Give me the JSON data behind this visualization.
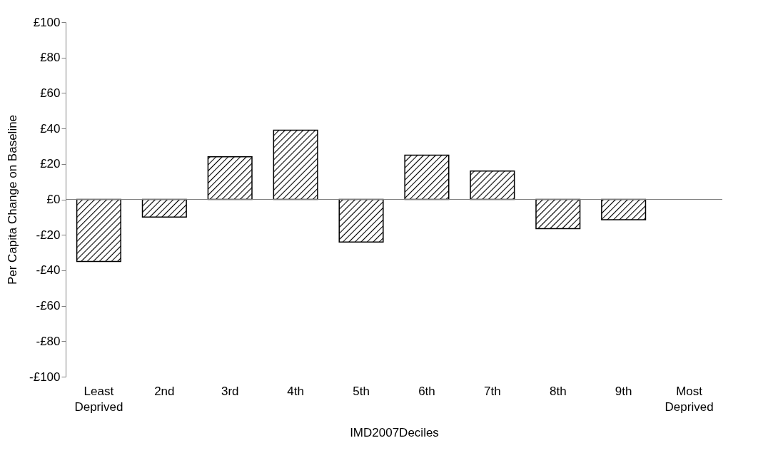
{
  "chart_data": {
    "type": "bar",
    "xlabel": "IMD2007Deciles",
    "ylabel": "Per Capita Change on Baseline",
    "categories": [
      "Least Deprived",
      "2nd",
      "3rd",
      "4th",
      "5th",
      "6th",
      "7th",
      "8th",
      "9th",
      "Most Deprived"
    ],
    "values": [
      -35,
      -10,
      24,
      39,
      -24,
      25,
      16,
      -16.5,
      -11.5,
      null
    ],
    "color": "#000000",
    "ylim": [
      -100,
      100
    ],
    "yticks": [
      {
        "value": -100,
        "label": "-£100"
      },
      {
        "value": -80,
        "label": "-£80"
      },
      {
        "value": -60,
        "label": "-£60"
      },
      {
        "value": -40,
        "label": "-£40"
      },
      {
        "value": -20,
        "label": "-£20"
      },
      {
        "value": 0,
        "label": "£0"
      },
      {
        "value": 20,
        "label": "£20"
      },
      {
        "value": 40,
        "label": "£40"
      },
      {
        "value": 60,
        "label": "£60"
      },
      {
        "value": 80,
        "label": "£80"
      },
      {
        "value": 100,
        "label": "£100"
      }
    ],
    "ref_lines": [
      {
        "axis": "y",
        "value": 0,
        "color": "#808080"
      }
    ],
    "grid": false
  }
}
